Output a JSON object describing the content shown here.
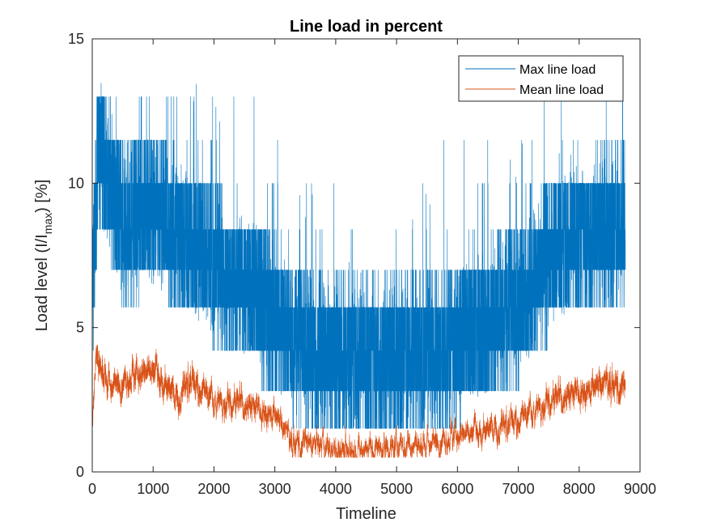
{
  "chart_data": {
    "type": "line",
    "title": "Line load in percent",
    "xlabel": "Timeline",
    "ylabel_prefix": "Load level (I/I",
    "ylabel_subscript": "max",
    "ylabel_suffix": ") [%]",
    "xlim": [
      0,
      9000
    ],
    "ylim": [
      0,
      15
    ],
    "xticks": [
      0,
      1000,
      2000,
      3000,
      4000,
      5000,
      6000,
      7000,
      8000,
      9000
    ],
    "yticks": [
      0,
      5,
      10,
      15
    ],
    "n_points": 8760,
    "grid": false,
    "legend_position": "top-right",
    "series": [
      {
        "name": "Max line load",
        "color": "#0072BD",
        "profile": [
          [
            0,
            6.0
          ],
          [
            100,
            11.5
          ],
          [
            500,
            8.5
          ],
          [
            1000,
            9.0
          ],
          [
            1600,
            8.0
          ],
          [
            2200,
            6.8
          ],
          [
            2500,
            6.5
          ],
          [
            3000,
            5.5
          ],
          [
            3300,
            4.5
          ],
          [
            4000,
            4.0
          ],
          [
            5000,
            4.0
          ],
          [
            5800,
            4.2
          ],
          [
            6300,
            5.0
          ],
          [
            7000,
            5.8
          ],
          [
            7500,
            7.5
          ],
          [
            8000,
            8.3
          ],
          [
            8760,
            8.5
          ]
        ]
      },
      {
        "name": "Mean line load",
        "color": "#D95319",
        "profile": [
          [
            0,
            1.7
          ],
          [
            60,
            4.0
          ],
          [
            300,
            3.0
          ],
          [
            1000,
            3.5
          ],
          [
            1400,
            2.6
          ],
          [
            1600,
            3.2
          ],
          [
            2000,
            2.5
          ],
          [
            2500,
            2.4
          ],
          [
            3000,
            2.0
          ],
          [
            3300,
            1.0
          ],
          [
            4000,
            0.8
          ],
          [
            5000,
            0.85
          ],
          [
            6000,
            1.2
          ],
          [
            7000,
            1.8
          ],
          [
            7500,
            2.5
          ],
          [
            8000,
            2.8
          ],
          [
            8500,
            3.1
          ],
          [
            8760,
            2.8
          ]
        ]
      }
    ]
  }
}
